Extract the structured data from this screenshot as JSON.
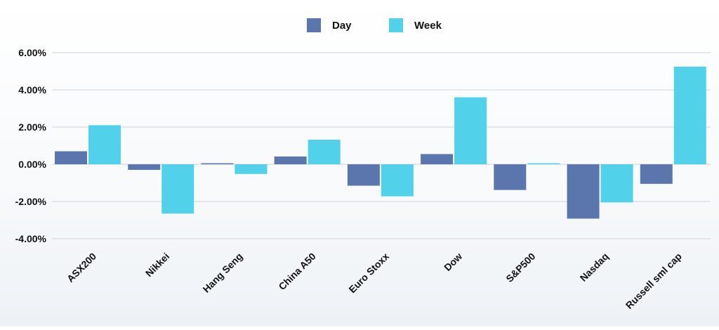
{
  "chart_data": {
    "type": "bar",
    "title": "",
    "xlabel": "",
    "ylabel": "",
    "categories": [
      "ASX200",
      "Nikkei",
      "Hang Seng",
      "China A50",
      "Euro Stoxx",
      "Dow",
      "S&P500",
      "Nasdaq",
      "Russell sml cap"
    ],
    "series": [
      {
        "name": "Day",
        "color": "#5B76AD",
        "values": [
          0.7,
          -0.3,
          0.03,
          0.42,
          -1.15,
          0.55,
          -1.38,
          -2.92,
          -1.05
        ]
      },
      {
        "name": "Week",
        "color": "#52D1EB",
        "values": [
          2.1,
          -2.65,
          -0.52,
          1.32,
          -1.72,
          3.6,
          0.04,
          -2.05,
          5.25
        ]
      }
    ],
    "ylim": [
      -4,
      6
    ],
    "yticks": [
      6,
      4,
      2,
      0,
      -2,
      -4
    ],
    "ytick_labels": [
      "6.00%",
      "4.00%",
      "2.00%",
      "0.00%",
      "-2.00%",
      "-4.00%"
    ],
    "grid": true,
    "legend_position": "top-center"
  }
}
